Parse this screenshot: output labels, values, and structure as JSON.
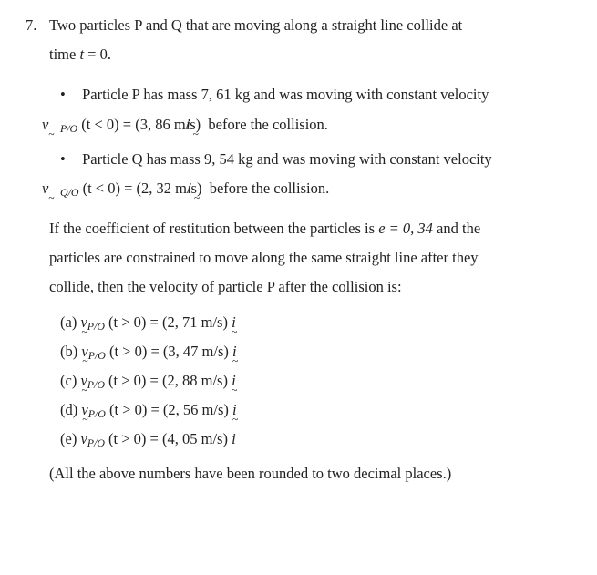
{
  "question": {
    "number": "7.",
    "intro_l1": "Two particles P and Q that are moving along a straight line collide at",
    "intro_l2": "time t = 0.",
    "bullets": [
      {
        "line1_pre": "Particle P has mass ",
        "mass": "7, 61 kg",
        "line1_post": " and was moving with constant velocity",
        "vel_symbol_sub": "P/O",
        "cond": " (t < 0) = ",
        "vel_value": "(3, 86 m/s)",
        "line2_post": " before the collision."
      },
      {
        "line1_pre": "Particle Q has mass ",
        "mass": "9, 54 kg",
        "line1_post": " and was moving with constant velocity",
        "vel_symbol_sub": "Q/O",
        "cond": " (t < 0) = ",
        "vel_value": "(2, 32 m/s)",
        "line2_post": " before the collision."
      }
    ],
    "body_l1_a": "If the coefficient of restitution between the particles is ",
    "body_l1_e": "e = 0, 34",
    "body_l1_b": " and the",
    "body_l2": "particles are constrained to move along the same straight line after they",
    "body_l3": "collide, then the velocity of particle P after the collision is:",
    "answers": [
      {
        "label": "(a)",
        "sub": "P/O",
        "cond": " (t > 0) = ",
        "val": "(2, 71 m/s)"
      },
      {
        "label": "(b)",
        "sub": "P/O",
        "cond": " (t > 0) = ",
        "val": "(3, 47 m/s)"
      },
      {
        "label": "(c)",
        "sub": "P/O",
        "cond": " (t > 0) = ",
        "val": "(2, 88 m/s)"
      },
      {
        "label": "(d)",
        "sub": "P/O",
        "cond": " (t > 0) = ",
        "val": "(2, 56 m/s)"
      },
      {
        "label": "(e)",
        "sub": "P/O",
        "cond": " (t > 0) = ",
        "val": "(4, 05 m/s)"
      }
    ],
    "note": "(All the above numbers have been rounded to two decimal places.)"
  },
  "glyphs": {
    "bullet": "•",
    "v": "v",
    "i": "i"
  },
  "style": {
    "text_color": "#222222",
    "background": "#ffffff",
    "font_family": "Times New Roman",
    "base_fontsize_pt": 12.5,
    "line_height": 1.95
  }
}
